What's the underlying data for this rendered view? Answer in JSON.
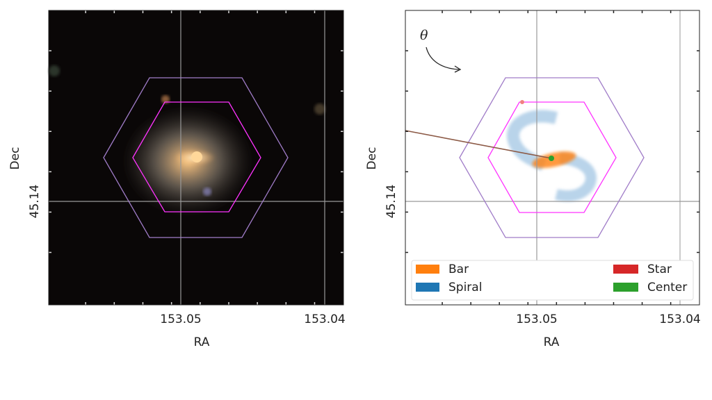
{
  "left_panel": {
    "xlabel": "RA",
    "ylabel": "Dec",
    "xticks": [
      "153.05",
      "153.04"
    ],
    "yticks": [
      "45.14"
    ]
  },
  "right_panel": {
    "xlabel": "RA",
    "ylabel": "Dec",
    "xticks": [
      "153.05",
      "153.04"
    ],
    "yticks": [
      "45.14"
    ],
    "annotation": "θ",
    "legend": [
      {
        "label": "Bar",
        "color": "#ff7f0e"
      },
      {
        "label": "Spiral",
        "color": "#1f77b4"
      },
      {
        "label": "Star",
        "color": "#d62728"
      },
      {
        "label": "Center",
        "color": "#2ca02c"
      }
    ]
  },
  "colors": {
    "outer_hexagon": "#a07cc8",
    "inner_hexagon": "#ff33ff",
    "theta_line": "#8c5a46"
  }
}
